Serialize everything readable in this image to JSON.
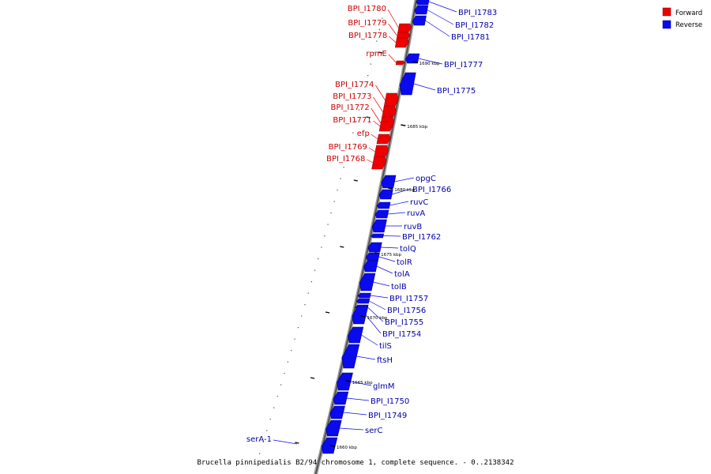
{
  "legend": [
    {
      "label": "Forward",
      "color": "#ee0000"
    },
    {
      "label": "Reverse",
      "color": "#0a0aee"
    }
  ],
  "caption": "Brucella pinnipedialis B2/94 chromosome 1, complete sequence. - 0..2138342",
  "scale_labels": [
    "1690 kbp",
    "1685 kbp",
    "1680 kbp",
    "1675 kbp",
    "1670 kbp",
    "1665 kbp",
    "1660 kbp"
  ],
  "forward_genes": [
    "BPI_I1780",
    "BPI_I1779",
    "BPI_I1778",
    "rpmE",
    "BPI_I1774",
    "BPI_I1773",
    "BPI_I1772",
    "BPI_I1771",
    "efp",
    "BPI_I1769",
    "BPI_I1768"
  ],
  "reverse_genes": [
    "BPI_I1783",
    "BPI_I1782",
    "BPI_I1781",
    "BPI_I1777",
    "BPI_I1775",
    "opgC",
    "BPI_I1766",
    "ruvC",
    "ruvA",
    "ruvB",
    "BPI_I1762",
    "tolQ",
    "tolR",
    "tolA",
    "tolB",
    "BPI_I1757",
    "BPI_I1756",
    "BPI_I1755",
    "BPI_I1754",
    "tilS",
    "ftsH",
    "glmM",
    "BPI_I1750",
    "BPI_I1749",
    "serC",
    "serA-1"
  ]
}
